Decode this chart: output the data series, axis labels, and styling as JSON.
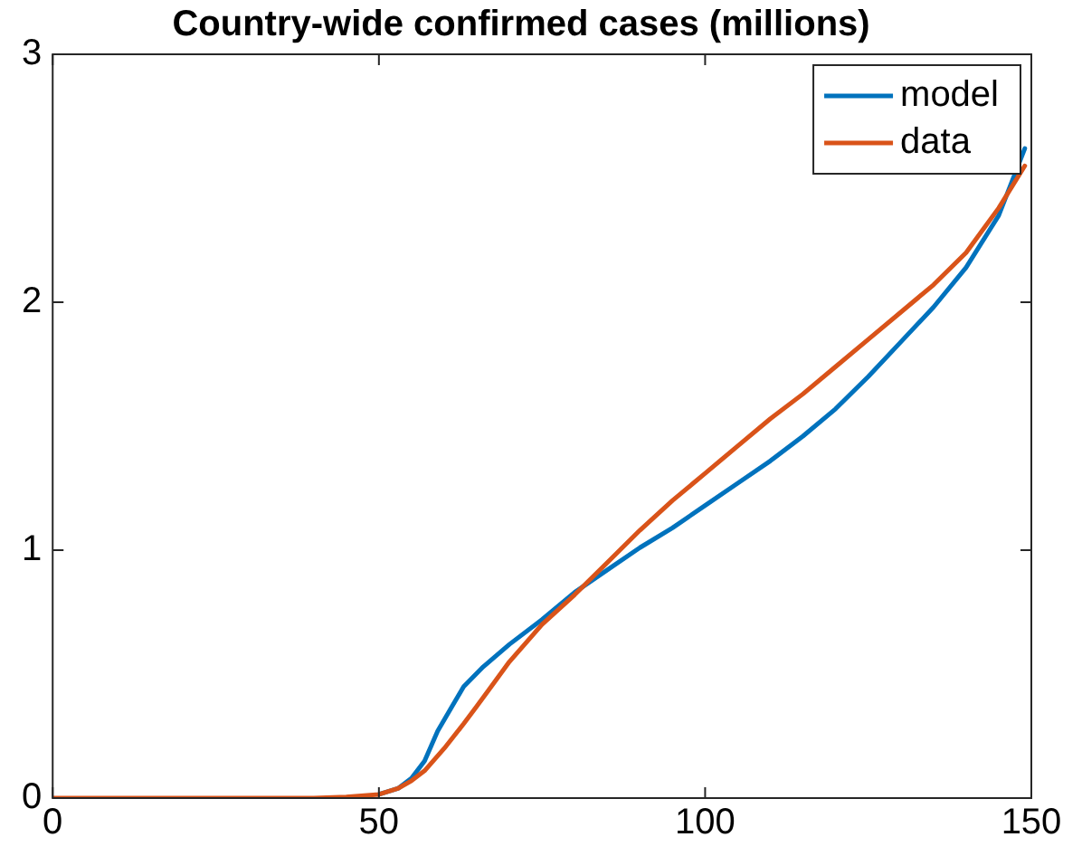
{
  "chart_data": {
    "type": "line",
    "title": "Country-wide confirmed cases (millions)",
    "xlim": [
      0,
      150
    ],
    "xticks": [
      0,
      50,
      100,
      150
    ],
    "ylim": [
      0,
      3
    ],
    "yticks": [
      0,
      1,
      2,
      3
    ],
    "grid": false,
    "legend": "top right",
    "marker": "none",
    "line_style": "solid",
    "series": [
      {
        "name": "model",
        "color": "#0072bd",
        "x": [
          50,
          53,
          55,
          57,
          59,
          61,
          63,
          66,
          70,
          75,
          80,
          85,
          90,
          95,
          100,
          105,
          110,
          115,
          120,
          125,
          130,
          135,
          140,
          145,
          149
        ],
        "values": [
          0.015,
          0.04,
          0.08,
          0.15,
          0.27,
          0.36,
          0.45,
          0.53,
          0.62,
          0.72,
          0.83,
          0.92,
          1.01,
          1.09,
          1.18,
          1.27,
          1.36,
          1.46,
          1.57,
          1.7,
          1.84,
          1.98,
          2.14,
          2.35,
          2.62
        ]
      },
      {
        "name": "data",
        "color": "#d95319",
        "x": [
          0,
          10,
          20,
          30,
          40,
          45,
          50,
          53,
          55,
          57,
          60,
          63,
          65,
          70,
          75,
          80,
          85,
          90,
          95,
          100,
          105,
          110,
          115,
          120,
          125,
          130,
          135,
          140,
          145,
          149
        ],
        "values": [
          0,
          0,
          0,
          0,
          0,
          0.005,
          0.015,
          0.04,
          0.07,
          0.11,
          0.2,
          0.3,
          0.37,
          0.55,
          0.7,
          0.82,
          0.95,
          1.08,
          1.2,
          1.31,
          1.42,
          1.53,
          1.63,
          1.74,
          1.85,
          1.96,
          2.07,
          2.2,
          2.38,
          2.55
        ]
      }
    ]
  }
}
